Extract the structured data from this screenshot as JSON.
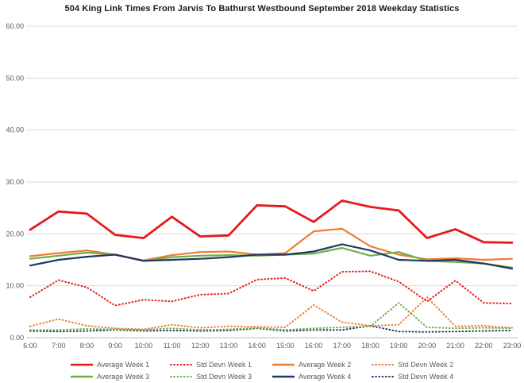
{
  "title": "504 King Link Times From Jarvis To Bathurst Westbound September 2018 Weekday Statistics",
  "colors": {
    "red": "#e31a1c",
    "orange": "#ed7d31",
    "green": "#70ad47",
    "navy": "#1f3864",
    "gridline": "#d9d9d9",
    "axis_line": "#bfbfbf",
    "tick_text": "#595959"
  },
  "chart_data": {
    "type": "line",
    "title": "504 King Link Times From Jarvis To Bathurst Westbound September 2018 Weekday Statistics",
    "x": [
      "6:00",
      "7:00",
      "8:00",
      "9:00",
      "10:00",
      "11:00",
      "12:00",
      "13:00",
      "14:00",
      "15:00",
      "16:00",
      "17:00",
      "18:00",
      "19:00",
      "20:00",
      "21:00",
      "22:00",
      "23:00"
    ],
    "xlabel": "",
    "ylabel": "",
    "ylim": [
      0,
      60
    ],
    "ytick_step": 10,
    "ytick_labels": [
      "0.00",
      "10.00",
      "20.00",
      "30.00",
      "40.00",
      "50.00",
      "60.00"
    ],
    "grid": true,
    "legend_position": "bottom",
    "series": [
      {
        "name": "Average Week 1",
        "color": "#e31a1c",
        "style": "solid",
        "width": 2.8,
        "values": [
          20.8,
          24.3,
          23.9,
          19.8,
          19.2,
          23.3,
          19.5,
          19.7,
          25.5,
          25.3,
          22.3,
          26.4,
          25.2,
          24.5,
          19.2,
          20.9,
          18.4,
          18.3
        ]
      },
      {
        "name": "Std Devn Week 1",
        "color": "#e31a1c",
        "style": "dotted",
        "width": 2.0,
        "values": [
          7.8,
          11.1,
          9.7,
          6.2,
          7.3,
          7.0,
          8.3,
          8.5,
          11.2,
          11.5,
          9.0,
          12.7,
          12.8,
          10.8,
          7.0,
          11.0,
          6.7,
          6.6
        ]
      },
      {
        "name": "Average Week 2",
        "color": "#ed7d31",
        "style": "solid",
        "width": 2.2,
        "values": [
          15.7,
          16.3,
          16.8,
          16.0,
          14.9,
          15.9,
          16.5,
          16.6,
          16.0,
          16.3,
          20.5,
          21.0,
          17.6,
          16.0,
          15.1,
          15.3,
          15.0,
          15.2
        ]
      },
      {
        "name": "Std Devn Week 2",
        "color": "#ed7d31",
        "style": "dotted",
        "width": 2.0,
        "values": [
          2.2,
          3.6,
          2.3,
          1.8,
          1.6,
          2.5,
          1.9,
          2.2,
          2.1,
          2.0,
          6.3,
          3.0,
          2.3,
          2.5,
          7.8,
          2.2,
          2.3,
          1.9
        ]
      },
      {
        "name": "Average Week 3",
        "color": "#70ad47",
        "style": "solid",
        "width": 2.2,
        "values": [
          15.2,
          15.8,
          16.4,
          16.0,
          14.8,
          15.5,
          15.8,
          15.9,
          15.8,
          16.0,
          16.2,
          17.3,
          15.8,
          16.5,
          14.8,
          14.6,
          14.3,
          13.5
        ]
      },
      {
        "name": "Std Devn Week 3",
        "color": "#70ad47",
        "style": "dotted",
        "width": 2.0,
        "values": [
          1.5,
          1.5,
          1.7,
          1.6,
          1.5,
          1.8,
          1.5,
          1.6,
          1.9,
          1.5,
          1.8,
          2.0,
          2.2,
          6.7,
          2.0,
          1.8,
          1.9,
          1.8
        ]
      },
      {
        "name": "Average Week 4",
        "color": "#1f3864",
        "style": "solid",
        "width": 2.2,
        "values": [
          13.9,
          15.0,
          15.6,
          16.0,
          14.8,
          15.0,
          15.2,
          15.5,
          16.0,
          16.0,
          16.6,
          18.0,
          16.8,
          15.0,
          14.8,
          15.0,
          14.3,
          13.3
        ]
      },
      {
        "name": "Std Devn Week 4",
        "color": "#1f3864",
        "style": "dotted",
        "width": 2.0,
        "values": [
          1.3,
          1.2,
          1.3,
          1.5,
          1.3,
          1.4,
          1.3,
          1.4,
          1.8,
          1.3,
          1.5,
          1.5,
          2.3,
          1.2,
          1.1,
          1.2,
          1.3,
          1.4
        ]
      }
    ]
  }
}
